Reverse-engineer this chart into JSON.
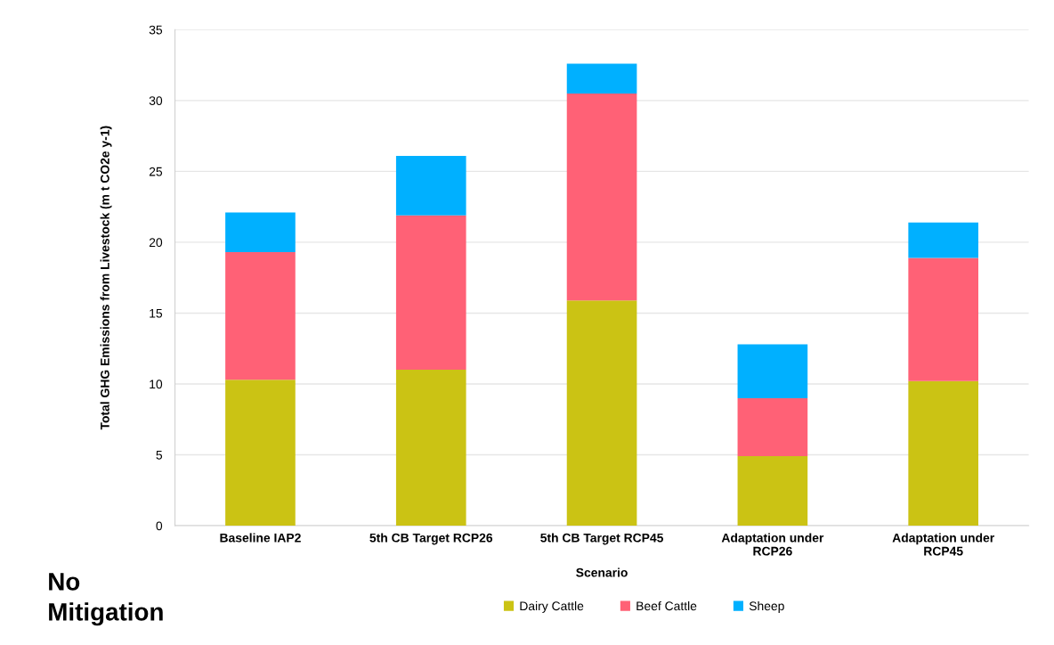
{
  "chart_data": {
    "type": "bar",
    "stacked": true,
    "categories": [
      "Baseline IAP2",
      "5th CB Target RCP26",
      "5th CB Target RCP45",
      "Adaptation under\nRCP26",
      "Adaptation under\nRCP45"
    ],
    "series": [
      {
        "name": "Dairy Cattle",
        "color": "#cbc314",
        "values": [
          10.3,
          11.0,
          15.9,
          4.9,
          10.2
        ]
      },
      {
        "name": "Beef Cattle",
        "color": "#ff6176",
        "values": [
          9.0,
          10.9,
          14.6,
          4.1,
          8.7
        ]
      },
      {
        "name": "Sheep",
        "color": "#00b0ff",
        "values": [
          2.8,
          4.2,
          2.1,
          3.8,
          2.5
        ]
      }
    ],
    "xlabel": "Scenario",
    "ylabel": "Total GHG Emissions from Livestock (m t CO2e y-1)",
    "ylim": [
      0,
      35
    ],
    "yticks": [
      0,
      5,
      10,
      15,
      20,
      25,
      30,
      35
    ],
    "grid": "y",
    "legend": "bottom",
    "annotations": [
      "No\nMitigation"
    ]
  }
}
